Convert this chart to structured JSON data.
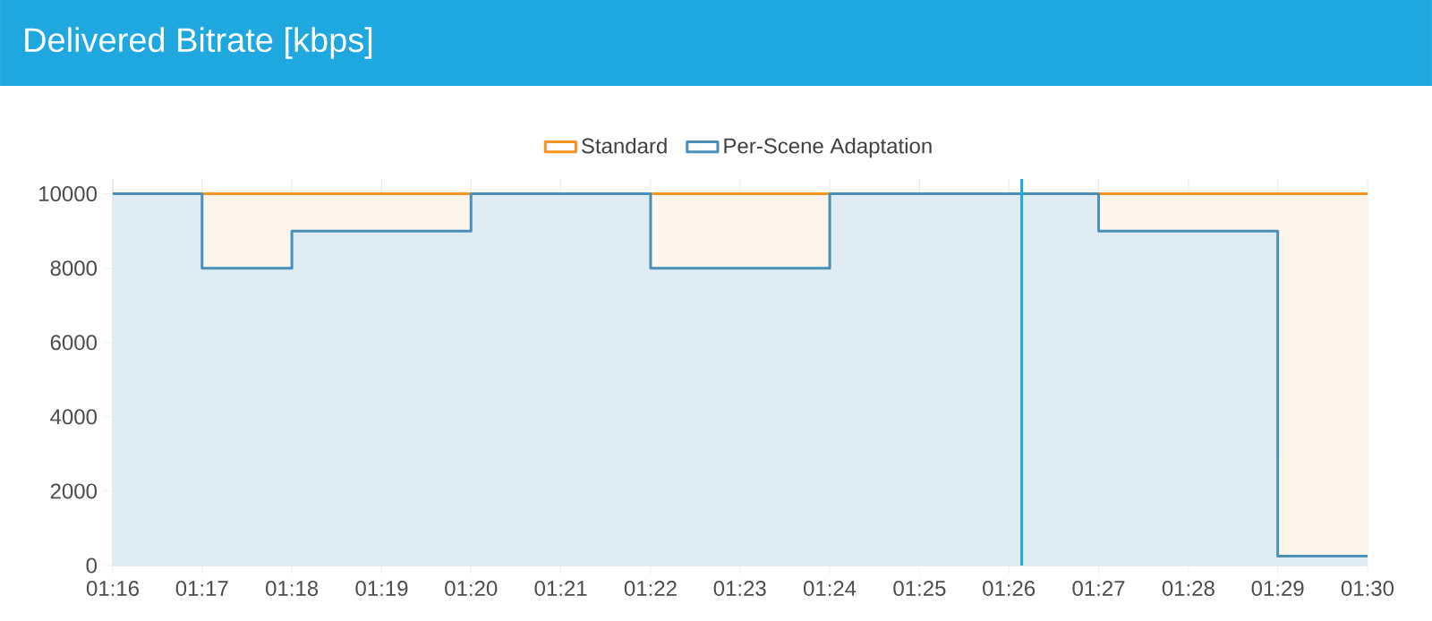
{
  "chart_data": {
    "type": "step",
    "title": "Delivered Bitrate [kbps]",
    "x": [
      1.2667,
      1.2833,
      1.3,
      1.3167,
      1.3333,
      1.35,
      1.3667,
      1.3833,
      1.4,
      1.4167,
      1.4333,
      1.45,
      1.4667,
      1.4833,
      1.5
    ],
    "series": [
      {
        "name": "Standard",
        "color": "#f7931e",
        "x": [
          1.2667,
          1.5
        ],
        "values": [
          10000,
          10000
        ]
      },
      {
        "name": "Per-Scene Adaptation",
        "color": "#4a8fb8",
        "values": [
          10000,
          8000,
          9000,
          9000,
          10000,
          10000,
          8000,
          8000,
          10000,
          10000,
          10000,
          9000,
          9000,
          250,
          250
        ]
      }
    ],
    "xlim": [
      1.2667,
      1.5
    ],
    "xticks": [
      {
        "value": 1.2667,
        "label": "01:16"
      },
      {
        "value": 1.2833,
        "label": "01:17"
      },
      {
        "value": 1.3,
        "label": "01:18"
      },
      {
        "value": 1.3167,
        "label": "01:19"
      },
      {
        "value": 1.3333,
        "label": "01:20"
      },
      {
        "value": 1.35,
        "label": "01:21"
      },
      {
        "value": 1.3667,
        "label": "01:22"
      },
      {
        "value": 1.3833,
        "label": "01:23"
      },
      {
        "value": 1.4,
        "label": "01:24"
      },
      {
        "value": 1.4167,
        "label": "01:25"
      },
      {
        "value": 1.4333,
        "label": "01:26"
      },
      {
        "value": 1.45,
        "label": "01:27"
      },
      {
        "value": 1.4667,
        "label": "01:28"
      },
      {
        "value": 1.4833,
        "label": "01:29"
      },
      {
        "value": 1.5,
        "label": "01:30"
      }
    ],
    "ylim": [
      0,
      10400
    ],
    "yticks": [
      0,
      2000,
      4000,
      6000,
      8000,
      10000
    ],
    "ref_lines": [
      {
        "axis": "x",
        "value": 1.4357,
        "color": "#1ea8e0"
      }
    ],
    "grid": true,
    "legend": "top"
  }
}
